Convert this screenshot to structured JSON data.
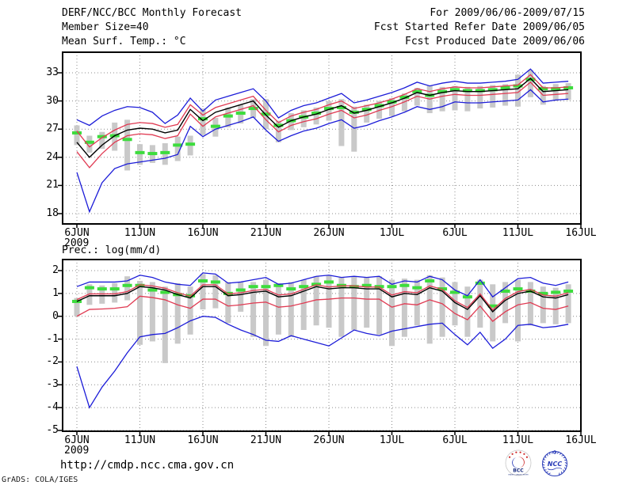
{
  "header": {
    "title": "DERF/NCC/BCC Monthly Forecast",
    "member_size": "Member Size=40",
    "for_range": "For 2009/06/06-2009/07/15",
    "fcst_started": "Fcst Started Refer Date 2009/06/05",
    "fcst_produced": "Fcst Produced Date 2009/06/06"
  },
  "footer": {
    "url": "http://cmdp.ncc.cma.gov.cn",
    "grads_credit": "GrADS: COLA/IGES",
    "logos": [
      {
        "name": "bcc-logo",
        "label": "BCC",
        "ring_text": "BEIJING CLIMATE CENTER"
      },
      {
        "name": "ncc-logo",
        "label": "NCC"
      }
    ]
  },
  "colors": {
    "envelope_blue": "#1c1cd8",
    "spread_red": "#e03a52",
    "mean_black": "#000000",
    "obs_green": "#3ddc3d",
    "member_bar_gray": "#c9c9c9",
    "grid_gray": "#8c8c8c",
    "logo_navy": "#14287d",
    "logo_blue": "#2a3cb8",
    "logo_red": "#cc2222"
  },
  "chart_data": [
    {
      "type": "line",
      "title": "Mean Surf. Temp.: °C",
      "year_label": "2009",
      "x_ticks": [
        {
          "label": "6JUN",
          "day": 0
        },
        {
          "label": "11JUN",
          "day": 5
        },
        {
          "label": "16JUN",
          "day": 10
        },
        {
          "label": "21JUN",
          "day": 15
        },
        {
          "label": "26JUN",
          "day": 20
        },
        {
          "label": "1JUL",
          "day": 25
        },
        {
          "label": "6JUL",
          "day": 30
        },
        {
          "label": "11JUL",
          "day": 35
        },
        {
          "label": "16JUL",
          "day": 40
        }
      ],
      "y_ticks": [
        18,
        21,
        24,
        27,
        30,
        33
      ],
      "ylim": [
        16.9,
        35.2
      ],
      "dates": [
        "6JUN",
        "7JUN",
        "8JUN",
        "9JUN",
        "10JUN",
        "11JUN",
        "12JUN",
        "13JUN",
        "14JUN",
        "15JUN",
        "16JUN",
        "17JUN",
        "18JUN",
        "19JUN",
        "20JUN",
        "21JUN",
        "22JUN",
        "23JUN",
        "24JUN",
        "25JUN",
        "26JUN",
        "27JUN",
        "28JUN",
        "29JUN",
        "30JUN",
        "1JUL",
        "2JUL",
        "3JUL",
        "4JUL",
        "5JUL",
        "6JUL",
        "7JUL",
        "8JUL",
        "9JUL",
        "10JUL",
        "11JUL",
        "12JUL",
        "13JUL",
        "14JUL",
        "15JUL"
      ],
      "series": [
        {
          "name": "ensemble-max",
          "color": "#1c1cd8",
          "values": [
            28.0,
            27.4,
            28.4,
            29.0,
            29.4,
            29.3,
            28.8,
            27.6,
            28.5,
            30.3,
            28.9,
            30.1,
            30.5,
            30.9,
            31.3,
            30.0,
            28.2,
            29.0,
            29.5,
            29.8,
            30.3,
            30.8,
            29.8,
            30.1,
            30.5,
            30.9,
            31.4,
            32.0,
            31.6,
            31.9,
            32.1,
            31.9,
            31.9,
            32.0,
            32.1,
            32.3,
            33.4,
            31.9,
            32.0,
            32.1
          ]
        },
        {
          "name": "upper-spread",
          "color": "#e03a52",
          "values": [
            26.8,
            25.1,
            26.1,
            26.9,
            27.5,
            27.7,
            27.6,
            27.2,
            27.5,
            29.6,
            28.5,
            29.3,
            29.7,
            30.1,
            30.5,
            29.0,
            27.7,
            28.4,
            28.8,
            29.1,
            29.6,
            30.0,
            29.2,
            29.5,
            29.8,
            30.2,
            30.7,
            31.3,
            31.0,
            31.3,
            31.5,
            31.4,
            31.4,
            31.5,
            31.6,
            31.7,
            32.8,
            31.4,
            31.4,
            31.5
          ]
        },
        {
          "name": "lower-spread",
          "color": "#e03a52",
          "values": [
            24.6,
            22.9,
            24.4,
            25.6,
            26.3,
            26.5,
            26.4,
            26.0,
            26.3,
            28.6,
            27.3,
            28.3,
            28.7,
            29.1,
            29.5,
            28.0,
            26.7,
            27.4,
            27.8,
            28.1,
            28.6,
            29.0,
            28.2,
            28.5,
            29.0,
            29.4,
            29.9,
            30.5,
            30.2,
            30.5,
            30.7,
            30.6,
            30.6,
            30.7,
            30.8,
            30.9,
            32.0,
            30.6,
            30.7,
            30.8
          ]
        },
        {
          "name": "ensemble-min",
          "color": "#1c1cd8",
          "values": [
            22.4,
            18.2,
            21.3,
            22.8,
            23.3,
            23.5,
            23.7,
            23.9,
            24.3,
            27.3,
            26.2,
            27.0,
            27.4,
            27.8,
            28.3,
            26.9,
            25.7,
            26.3,
            26.8,
            27.1,
            27.6,
            28.0,
            27.1,
            27.4,
            27.9,
            28.3,
            28.8,
            29.4,
            29.1,
            29.4,
            29.9,
            29.8,
            29.8,
            29.9,
            30.0,
            30.1,
            31.2,
            29.9,
            30.1,
            30.2
          ]
        },
        {
          "name": "ensemble-mean",
          "color": "#000000",
          "values": [
            25.6,
            24.0,
            25.3,
            26.3,
            26.9,
            27.1,
            27.0,
            26.6,
            26.9,
            29.1,
            27.9,
            28.8,
            29.2,
            29.6,
            30.0,
            28.5,
            27.2,
            27.9,
            28.3,
            28.6,
            29.1,
            29.5,
            28.7,
            29.0,
            29.4,
            29.8,
            30.3,
            30.9,
            30.6,
            30.9,
            31.1,
            31.0,
            31.0,
            31.1,
            31.2,
            31.3,
            32.4,
            31.0,
            31.1,
            31.2
          ]
        }
      ],
      "obs_dashes": {
        "name": "observation-dashes",
        "color": "#3ddc3d",
        "values": [
          26.6,
          25.6,
          26.2,
          26.3,
          25.9,
          24.5,
          24.4,
          24.5,
          25.3,
          25.4,
          28.1,
          27.3,
          28.4,
          28.7,
          29.2,
          28.6,
          27.4,
          27.9,
          28.3,
          28.7,
          29.2,
          29.3,
          28.8,
          29.1,
          29.5,
          29.9,
          30.4,
          31.0,
          30.6,
          31.0,
          31.2,
          31.1,
          31.1,
          31.2,
          31.4,
          31.6,
          32.3,
          31.3,
          31.3,
          31.4
        ]
      },
      "member_spread_bars": {
        "color": "#c9c9c9",
        "top": [
          27.4,
          26.3,
          26.7,
          27.7,
          28.0,
          25.4,
          25.3,
          25.5,
          26.2,
          26.3,
          29.2,
          28.2,
          29.3,
          29.6,
          30.2,
          30.2,
          27.9,
          28.7,
          29.0,
          29.3,
          30.0,
          30.2,
          29.4,
          29.6,
          30.0,
          30.3,
          30.8,
          31.4,
          31.6,
          31.5,
          31.6,
          31.5,
          31.6,
          31.7,
          31.8,
          32.8,
          33.3,
          31.6,
          31.8,
          31.9
        ],
        "bottom": [
          25.3,
          24.5,
          24.9,
          24.7,
          22.6,
          23.2,
          23.4,
          23.2,
          23.6,
          24.2,
          26.4,
          26.2,
          27.2,
          27.6,
          28.2,
          27.0,
          25.6,
          26.9,
          27.2,
          27.5,
          27.9,
          25.2,
          24.6,
          27.7,
          28.1,
          28.4,
          28.9,
          29.5,
          28.7,
          28.9,
          29.0,
          28.9,
          29.2,
          29.3,
          29.5,
          29.4,
          30.4,
          29.6,
          30.0,
          30.1
        ]
      }
    },
    {
      "type": "line",
      "title": "Prec.: log(mm/d)",
      "year_label": "2009",
      "x_ticks": [
        {
          "label": "6JUN",
          "day": 0
        },
        {
          "label": "11JUN",
          "day": 5
        },
        {
          "label": "16JUN",
          "day": 10
        },
        {
          "label": "21JUN",
          "day": 15
        },
        {
          "label": "26JUN",
          "day": 20
        },
        {
          "label": "1JUL",
          "day": 25
        },
        {
          "label": "6JUL",
          "day": 30
        },
        {
          "label": "11JUL",
          "day": 35
        },
        {
          "label": "16JUL",
          "day": 40
        }
      ],
      "y_ticks": [
        -5,
        -4,
        -3,
        -2,
        -1,
        0,
        1,
        2
      ],
      "ylim": [
        -5.0,
        2.5
      ],
      "dates": [
        "6JUN",
        "7JUN",
        "8JUN",
        "9JUN",
        "10JUN",
        "11JUN",
        "12JUN",
        "13JUN",
        "14JUN",
        "15JUN",
        "16JUN",
        "17JUN",
        "18JUN",
        "19JUN",
        "20JUN",
        "21JUN",
        "22JUN",
        "23JUN",
        "24JUN",
        "25JUN",
        "26JUN",
        "27JUN",
        "28JUN",
        "29JUN",
        "30JUN",
        "1JUL",
        "2JUL",
        "3JUL",
        "4JUL",
        "5JUL",
        "6JUL",
        "7JUL",
        "8JUL",
        "9JUL",
        "10JUL",
        "11JUL",
        "12JUL",
        "13JUL",
        "14JUL",
        "15JUL"
      ],
      "series": [
        {
          "name": "ensemble-max",
          "color": "#1c1cd8",
          "values": [
            1.3,
            1.5,
            1.5,
            1.5,
            1.55,
            1.8,
            1.7,
            1.5,
            1.4,
            1.35,
            1.9,
            1.85,
            1.45,
            1.5,
            1.6,
            1.7,
            1.4,
            1.45,
            1.6,
            1.75,
            1.8,
            1.7,
            1.75,
            1.7,
            1.75,
            1.4,
            1.55,
            1.5,
            1.75,
            1.6,
            1.15,
            0.9,
            1.6,
            0.85,
            1.25,
            1.65,
            1.7,
            1.45,
            1.35,
            1.5
          ]
        },
        {
          "name": "upper-spread",
          "color": "#e03a52",
          "values": [
            0.73,
            0.98,
            0.98,
            0.98,
            1.08,
            1.38,
            1.33,
            1.23,
            1.03,
            0.88,
            1.38,
            1.38,
            0.98,
            1.03,
            1.13,
            1.18,
            0.93,
            0.98,
            1.18,
            1.38,
            1.28,
            1.33,
            1.33,
            1.28,
            1.28,
            0.93,
            1.08,
            1.03,
            1.33,
            1.18,
            0.68,
            0.38,
            0.98,
            0.28,
            0.78,
            1.08,
            1.18,
            0.93,
            0.88,
            1.03
          ]
        },
        {
          "name": "lower-spread",
          "color": "#e03a52",
          "values": [
            0.0,
            0.3,
            0.32,
            0.35,
            0.42,
            0.88,
            0.82,
            0.72,
            0.5,
            0.35,
            0.75,
            0.75,
            0.45,
            0.5,
            0.58,
            0.62,
            0.4,
            0.45,
            0.58,
            0.72,
            0.75,
            0.8,
            0.8,
            0.75,
            0.75,
            0.4,
            0.55,
            0.5,
            0.72,
            0.55,
            0.12,
            -0.15,
            0.45,
            -0.22,
            0.2,
            0.5,
            0.6,
            0.35,
            0.3,
            0.45
          ]
        },
        {
          "name": "ensemble-min",
          "color": "#1c1cd8",
          "values": [
            -2.2,
            -4.0,
            -3.1,
            -2.4,
            -1.6,
            -0.9,
            -0.8,
            -0.75,
            -0.5,
            -0.2,
            0.0,
            -0.05,
            -0.35,
            -0.6,
            -0.8,
            -1.05,
            -1.1,
            -0.85,
            -1.0,
            -1.15,
            -1.3,
            -0.95,
            -0.6,
            -0.75,
            -0.85,
            -0.65,
            -0.55,
            -0.45,
            -0.35,
            -0.3,
            -0.8,
            -1.25,
            -0.7,
            -1.4,
            -1.0,
            -0.4,
            -0.35,
            -0.5,
            -0.45,
            -0.35
          ]
        },
        {
          "name": "ensemble-mean",
          "color": "#000000",
          "values": [
            0.65,
            0.9,
            0.9,
            0.9,
            1.0,
            1.3,
            1.25,
            1.15,
            0.95,
            0.8,
            1.3,
            1.3,
            0.9,
            0.95,
            1.05,
            1.1,
            0.85,
            0.9,
            1.1,
            1.3,
            1.2,
            1.25,
            1.25,
            1.2,
            1.2,
            0.85,
            1.0,
            0.95,
            1.25,
            1.1,
            0.6,
            0.3,
            0.9,
            0.2,
            0.7,
            1.0,
            1.1,
            0.85,
            0.8,
            0.95
          ]
        }
      ],
      "obs_dashes": {
        "name": "observation-dashes",
        "color": "#3ddc3d",
        "values": [
          0.65,
          1.25,
          1.2,
          1.2,
          1.35,
          1.35,
          1.15,
          1.05,
          0.95,
          0.9,
          1.55,
          1.5,
          1.0,
          1.15,
          1.3,
          1.3,
          1.35,
          1.2,
          1.3,
          1.4,
          1.5,
          1.35,
          1.3,
          1.35,
          1.3,
          1.3,
          1.35,
          1.25,
          1.55,
          1.2,
          1.05,
          0.85,
          1.45,
          0.45,
          1.1,
          1.2,
          1.1,
          1.0,
          1.05,
          1.1
        ]
      },
      "member_spread_bars": {
        "color": "#c9c9c9",
        "top": [
          0.8,
          1.4,
          1.35,
          1.45,
          1.75,
          1.55,
          1.5,
          1.3,
          1.45,
          1.3,
          1.85,
          1.8,
          1.5,
          1.5,
          1.5,
          1.6,
          1.45,
          1.5,
          1.6,
          1.75,
          1.8,
          1.7,
          1.75,
          1.7,
          1.75,
          1.6,
          1.65,
          1.6,
          1.8,
          1.7,
          1.5,
          1.3,
          1.6,
          1.4,
          1.5,
          1.6,
          1.5,
          1.3,
          1.25,
          1.4
        ],
        "bottom": [
          0.0,
          0.5,
          0.55,
          0.6,
          0.7,
          -1.25,
          -1.1,
          -2.05,
          -1.2,
          -0.8,
          0.3,
          0.35,
          -0.3,
          0.2,
          -0.9,
          -1.3,
          -0.8,
          -0.9,
          -0.6,
          -0.4,
          -0.5,
          -0.9,
          -0.6,
          -0.5,
          -0.8,
          -1.3,
          -0.9,
          -0.4,
          -1.2,
          -0.9,
          -0.4,
          -0.9,
          -0.5,
          -1.1,
          -0.3,
          -1.1,
          -0.4,
          -0.3,
          -0.35,
          -0.3
        ]
      }
    }
  ]
}
